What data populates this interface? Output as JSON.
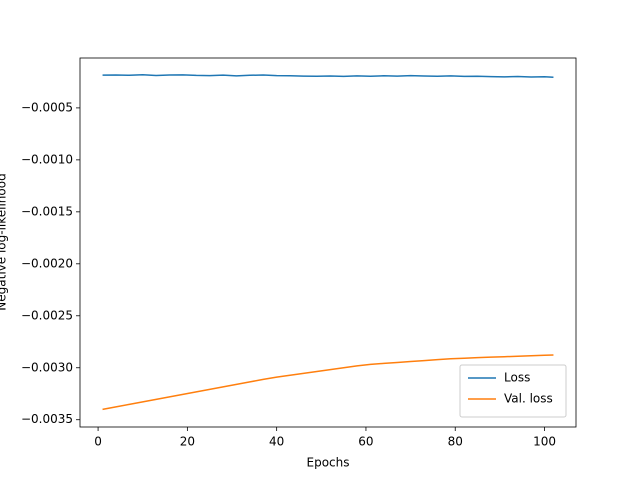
{
  "chart_data": {
    "type": "line",
    "x_label": "Epochs",
    "y_label": "Negative log-likelihood",
    "x": [
      1,
      4,
      7,
      10,
      13,
      16,
      19,
      22,
      25,
      28,
      31,
      34,
      37,
      40,
      43,
      46,
      49,
      52,
      55,
      58,
      61,
      64,
      67,
      70,
      73,
      76,
      79,
      82,
      85,
      88,
      91,
      94,
      97,
      100,
      102
    ],
    "series": [
      {
        "name": "Loss",
        "color": "#1f77b4",
        "values": [
          -0.000185,
          -0.000183,
          -0.000186,
          -0.000181,
          -0.000188,
          -0.000184,
          -0.000182,
          -0.000187,
          -0.000189,
          -0.000185,
          -0.000192,
          -0.000186,
          -0.000184,
          -0.00019,
          -0.000191,
          -0.000194,
          -0.000196,
          -0.000193,
          -0.000197,
          -0.000192,
          -0.000195,
          -0.000191,
          -0.000194,
          -0.000189,
          -0.000193,
          -0.000196,
          -0.000192,
          -0.000197,
          -0.000195,
          -0.000199,
          -0.000201,
          -0.000198,
          -0.000203,
          -0.0002,
          -0.000205
        ]
      },
      {
        "name": "Val. loss",
        "color": "#ff7f0e",
        "values": [
          -0.0034,
          -0.003376,
          -0.003352,
          -0.003328,
          -0.003304,
          -0.00328,
          -0.003256,
          -0.003232,
          -0.003208,
          -0.003184,
          -0.00316,
          -0.003136,
          -0.003112,
          -0.00309,
          -0.003072,
          -0.003054,
          -0.003036,
          -0.003018,
          -0.003,
          -0.002982,
          -0.002967,
          -0.002958,
          -0.002949,
          -0.00294,
          -0.002931,
          -0.002922,
          -0.002913,
          -0.002908,
          -0.002903,
          -0.002898,
          -0.002894,
          -0.002889,
          -0.002884,
          -0.00288,
          -0.002877
        ]
      }
    ],
    "xlim": [
      -4.05,
      107.05
    ],
    "xticks": [
      0,
      20,
      40,
      60,
      80,
      100
    ],
    "ylim": [
      -0.00357,
      -2e-05
    ],
    "yticks": [
      {
        "value": -0.0005,
        "label": "−0.0005"
      },
      {
        "value": -0.001,
        "label": "−0.0010"
      },
      {
        "value": -0.0015,
        "label": "−0.0015"
      },
      {
        "value": -0.002,
        "label": "−0.0020"
      },
      {
        "value": -0.0025,
        "label": "−0.0025"
      },
      {
        "value": -0.003,
        "label": "−0.0030"
      },
      {
        "value": -0.0035,
        "label": "−0.0035"
      }
    ],
    "legend": "lower right"
  }
}
